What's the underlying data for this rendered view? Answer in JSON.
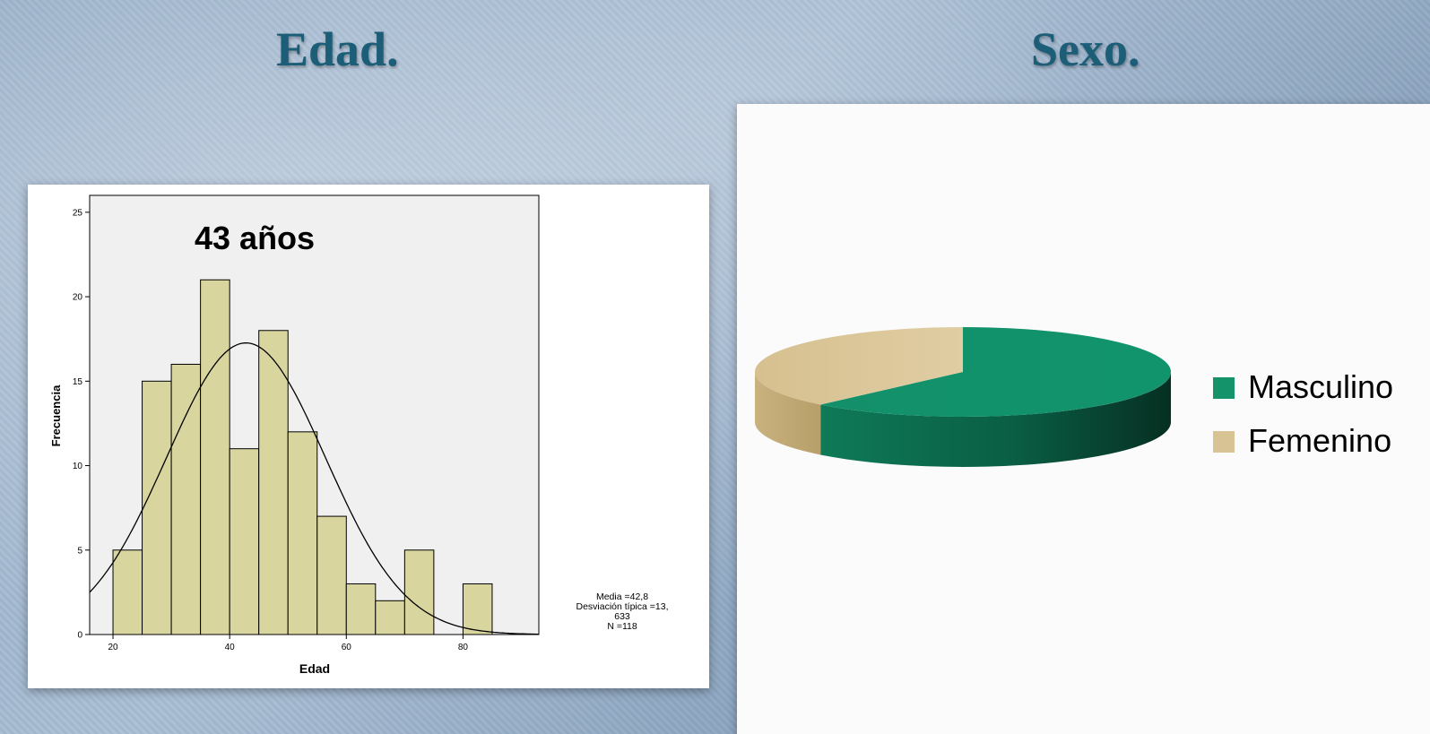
{
  "titles": {
    "left": "Edad.",
    "right": "Sexo."
  },
  "chart_data": [
    {
      "type": "bar",
      "subtype": "histogram",
      "annotation": "43 años",
      "xlabel": "Edad",
      "ylabel": "Frecuencia",
      "bins": [
        {
          "from": 20,
          "to": 25,
          "value": 5
        },
        {
          "from": 25,
          "to": 30,
          "value": 15
        },
        {
          "from": 30,
          "to": 35,
          "value": 16
        },
        {
          "from": 35,
          "to": 40,
          "value": 21
        },
        {
          "from": 40,
          "to": 45,
          "value": 11
        },
        {
          "from": 45,
          "to": 50,
          "value": 18
        },
        {
          "from": 50,
          "to": 55,
          "value": 12
        },
        {
          "from": 55,
          "to": 60,
          "value": 7
        },
        {
          "from": 60,
          "to": 65,
          "value": 3
        },
        {
          "from": 65,
          "to": 70,
          "value": 2
        },
        {
          "from": 70,
          "to": 75,
          "value": 5
        },
        {
          "from": 75,
          "to": 80,
          "value": 0
        },
        {
          "from": 80,
          "to": 85,
          "value": 3
        }
      ],
      "xlim": [
        16,
        93
      ],
      "ylim": [
        0,
        26
      ],
      "xticks": [
        20,
        40,
        60,
        80
      ],
      "yticks": [
        0,
        5,
        10,
        15,
        20,
        25
      ],
      "normal_curve": {
        "mean": 42.8,
        "sd": 13.633,
        "n": 118,
        "bin_width": 5
      },
      "stats_lines": [
        "Media =42,8",
        "Desviación típica =13,",
        "633",
        "N =118"
      ],
      "colors": {
        "bar": "#d9d59e",
        "plot_bg": "#f0f0f0",
        "curve": "#000000"
      }
    },
    {
      "type": "pie",
      "style": "3d",
      "slices": [
        {
          "label": "Masculino",
          "value": 62,
          "color": "#14936b"
        },
        {
          "label": "Femenino",
          "value": 38,
          "color": "#d8c394"
        }
      ],
      "legend_position": "right"
    }
  ]
}
